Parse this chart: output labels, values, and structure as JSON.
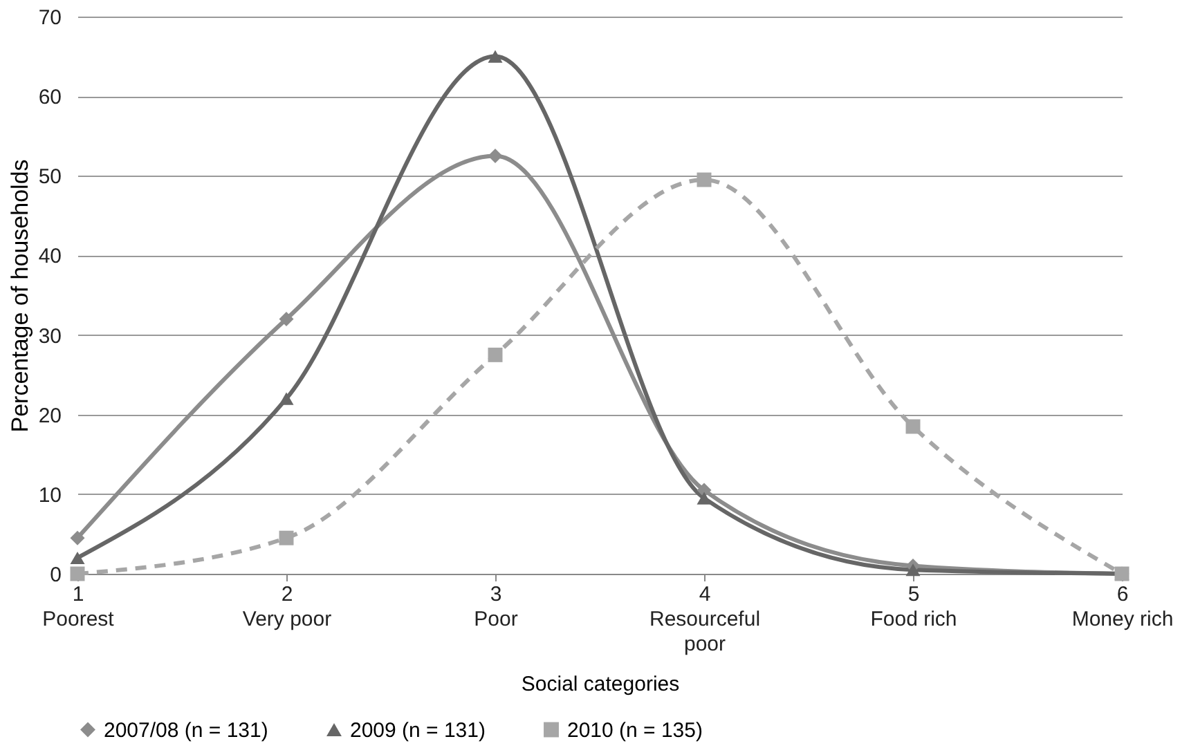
{
  "chart_data": {
    "type": "line",
    "xlabel": "Social categories",
    "ylabel": "Percentage of households",
    "categories": [
      "1\nPoorest",
      "2\nVery poor",
      "3\nPoor",
      "4\nResourceful\npoor",
      "5\nFood rich",
      "6\nMoney rich"
    ],
    "series": [
      {
        "name": "2007/08 (n = 131)",
        "color": "#8c8c8c",
        "marker": "diamond",
        "line_style": "solid",
        "values": [
          4.5,
          32,
          52.5,
          10.5,
          1,
          0
        ]
      },
      {
        "name": "2009 (n = 131)",
        "color": "#666666",
        "marker": "triangle",
        "line_style": "solid",
        "values": [
          2,
          22,
          65,
          9.5,
          0.5,
          0
        ]
      },
      {
        "name": "2010 (n = 135)",
        "color": "#a6a6a6",
        "marker": "square",
        "line_style": "dashed",
        "values": [
          0,
          4.5,
          27.5,
          49.5,
          18.5,
          0
        ]
      }
    ],
    "ylim": [
      0,
      70
    ],
    "yticks": [
      0,
      10,
      20,
      30,
      40,
      50,
      60,
      70
    ],
    "grid": "y",
    "legend": "bottom"
  }
}
